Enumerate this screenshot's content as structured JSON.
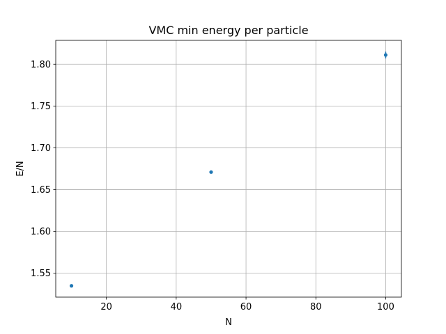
{
  "chart_data": {
    "type": "scatter",
    "title": "VMC min energy per particle",
    "xlabel": "N",
    "ylabel": "E/N",
    "xlim": [
      5.5,
      104.5
    ],
    "ylim": [
      1.5215,
      1.8285
    ],
    "xticks": [
      20,
      40,
      60,
      80,
      100
    ],
    "xtick_labels": [
      "20",
      "40",
      "60",
      "80",
      "100"
    ],
    "yticks": [
      1.55,
      1.6,
      1.65,
      1.7,
      1.75,
      1.8
    ],
    "ytick_labels": [
      "1.55",
      "1.60",
      "1.65",
      "1.70",
      "1.75",
      "1.80"
    ],
    "grid": true,
    "series": [
      {
        "color": "#1f77b4",
        "points": [
          {
            "x": 10,
            "y": 1.535,
            "yerr": 0.001
          },
          {
            "x": 50,
            "y": 1.671,
            "yerr": 0.001
          },
          {
            "x": 100,
            "y": 1.811,
            "yerr": 0.004
          }
        ]
      }
    ]
  }
}
